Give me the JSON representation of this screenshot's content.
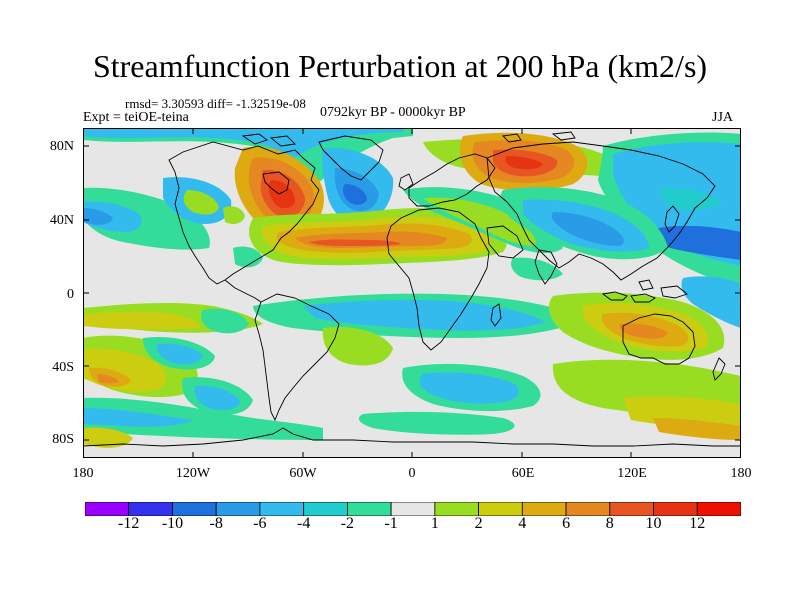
{
  "title": "Streamfunction Perturbation at 200 hPa (km2/s)",
  "stats": "rmsd= 3.30593  diff= -1.32519e-08",
  "experiment": "Expt = teiOE-teina",
  "period": "0792kyr BP - 0000kyr BP",
  "season": "JJA",
  "lat_labels": [
    "80N",
    "40N",
    "0",
    "40S",
    "80S"
  ],
  "lon_labels": [
    "180",
    "120W",
    "60W",
    "0",
    "60E",
    "120E",
    "180"
  ],
  "colorbar": {
    "labels": [
      "-12",
      "-10",
      "-8",
      "-6",
      "-4",
      "-2",
      "-1",
      "1",
      "2",
      "4",
      "6",
      "8",
      "10",
      "12"
    ],
    "colors": [
      "#9900ff",
      "#3333ee",
      "#1f6fdd",
      "#2a9be6",
      "#33bbee",
      "#22cccc",
      "#33dd99",
      "#e6e6e6",
      "#99dd22",
      "#cccc11",
      "#ddaa11",
      "#e68822",
      "#e65522",
      "#e63311",
      "#ee1100"
    ]
  },
  "map_colors": {
    "background": "#e6e6e6",
    "coast": "#000000"
  }
}
